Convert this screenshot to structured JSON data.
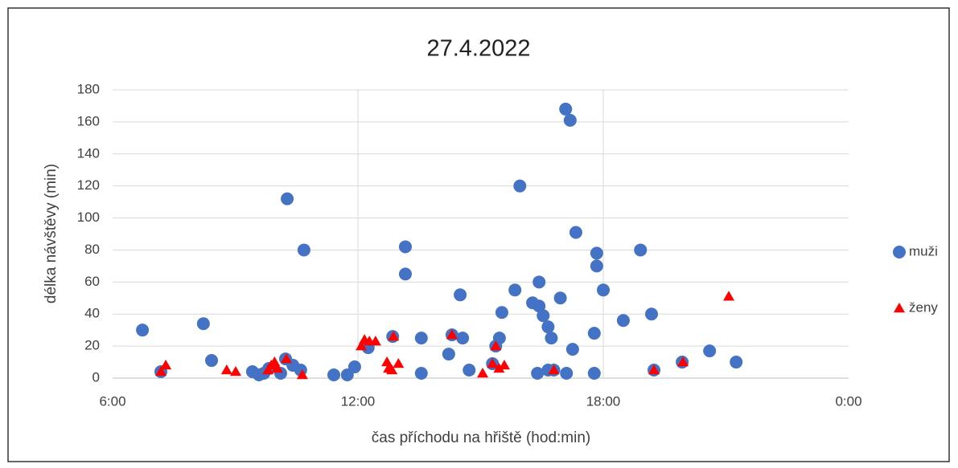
{
  "chart_data": {
    "type": "scatter",
    "title": "27.4.2022",
    "x_label": "čas příchodu na hřiště (hod:min)",
    "y_label": "délka návštěvy (min)",
    "xlim": [
      6,
      24
    ],
    "xticks": [
      {
        "value": 6,
        "label": "6:00"
      },
      {
        "value": 12,
        "label": "12:00"
      },
      {
        "value": 18,
        "label": "18:00"
      },
      {
        "value": 24,
        "label": "0:00"
      }
    ],
    "ylim": [
      0,
      180
    ],
    "yticks": [
      0,
      20,
      40,
      60,
      80,
      100,
      120,
      140,
      160,
      180
    ],
    "grid": true,
    "legend": "right",
    "series": [
      {
        "name": "muži",
        "color": "#4472c4",
        "marker": "circle",
        "x": [
          6.73,
          7.18,
          8.22,
          8.42,
          9.42,
          9.58,
          9.7,
          9.82,
          10.11,
          10.23,
          10.27,
          10.41,
          10.6,
          10.68,
          11.41,
          11.74,
          11.92,
          12.25,
          12.85,
          13.16,
          13.16,
          13.55,
          13.55,
          14.22,
          14.3,
          14.5,
          14.56,
          14.72,
          15.29,
          15.37,
          15.46,
          15.52,
          15.84,
          15.96,
          16.27,
          16.43,
          16.43,
          16.53,
          16.65,
          16.73,
          16.39,
          16.65,
          16.79,
          16.95,
          17.08,
          17.19,
          17.1,
          17.25,
          17.33,
          17.78,
          17.78,
          17.84,
          17.84,
          18.0,
          18.49,
          18.91,
          19.18,
          19.24,
          19.93,
          20.6,
          21.25
        ],
        "values": [
          30,
          4,
          34,
          11,
          4,
          2,
          3,
          6,
          3,
          12,
          112,
          8,
          5,
          80,
          2,
          2,
          7,
          19,
          26,
          82,
          65,
          25,
          3,
          15,
          27,
          52,
          25,
          5,
          9,
          20,
          25,
          41,
          55,
          120,
          47,
          60,
          45,
          39,
          32,
          25,
          3,
          5,
          5,
          50,
          168,
          161,
          3,
          18,
          91,
          28,
          3,
          78,
          70,
          55,
          36,
          80,
          40,
          5,
          10,
          17,
          10
        ]
      },
      {
        "name": "ženy",
        "color": "#ff0000",
        "marker": "triangle",
        "x": [
          7.18,
          7.3,
          8.79,
          9.01,
          9.8,
          9.88,
          9.96,
          10.03,
          10.25,
          10.64,
          12.08,
          12.16,
          12.28,
          12.43,
          12.71,
          12.75,
          12.83,
          12.87,
          12.99,
          14.3,
          15.05,
          15.29,
          15.37,
          15.45,
          15.58,
          16.79,
          19.24,
          19.95,
          21.07
        ],
        "values": [
          4,
          8,
          5,
          4,
          5,
          8,
          10,
          6,
          12,
          2,
          20,
          24,
          23,
          23,
          10,
          6,
          5,
          26,
          9,
          27,
          3,
          9,
          20,
          6,
          8,
          5,
          5,
          10,
          51
        ]
      }
    ]
  }
}
